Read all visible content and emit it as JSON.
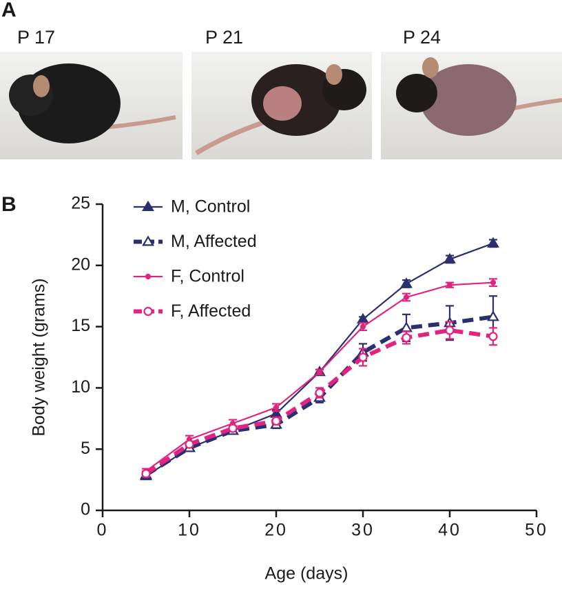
{
  "panel_a": {
    "label": "A",
    "photos": [
      {
        "label": "P 17"
      },
      {
        "label": "P 21"
      },
      {
        "label": "P 24"
      }
    ]
  },
  "chart_data": {
    "type": "line",
    "panel_label": "B",
    "x_label": "Age (days)",
    "y_label": "Body weight (grams)",
    "x": [
      5,
      10,
      15,
      20,
      25,
      30,
      35,
      40,
      45
    ],
    "series": [
      {
        "name": "M, Control",
        "color": "#2b2e6f",
        "dashed": false,
        "marker": "triangle",
        "marker_filled": true,
        "values": [
          2.8,
          5.1,
          6.5,
          7.9,
          11.3,
          15.6,
          18.5,
          20.5,
          21.8
        ],
        "errors": [
          0.2,
          0.2,
          0.2,
          0.3,
          0.2,
          0.2,
          0.3,
          0.3,
          0.3
        ]
      },
      {
        "name": "M, Affected",
        "color": "#2b2e6f",
        "dashed": true,
        "marker": "triangle",
        "marker_filled": false,
        "values": [
          2.9,
          5.1,
          6.5,
          7.0,
          9.2,
          12.9,
          14.9,
          15.3,
          15.8
        ],
        "errors": [
          0.2,
          0.2,
          0.2,
          0.3,
          0.4,
          0.7,
          1.1,
          1.4,
          1.7
        ]
      },
      {
        "name": "F, Control",
        "color": "#e2237f",
        "dashed": false,
        "marker": "dot",
        "marker_filled": true,
        "values": [
          3.2,
          5.8,
          7.1,
          8.4,
          11.3,
          15.0,
          17.4,
          18.4,
          18.6
        ],
        "errors": [
          0.2,
          0.3,
          0.3,
          0.3,
          0.2,
          0.3,
          0.3,
          0.2,
          0.3
        ]
      },
      {
        "name": "F, Affected",
        "color": "#e2237f",
        "dashed": true,
        "marker": "circle",
        "marker_filled": false,
        "values": [
          3.0,
          5.4,
          6.7,
          7.3,
          9.6,
          12.5,
          14.1,
          14.7,
          14.2
        ],
        "errors": [
          0.2,
          0.2,
          0.2,
          0.3,
          0.4,
          0.7,
          0.5,
          0.7,
          0.7
        ]
      }
    ],
    "xlim": [
      0,
      50
    ],
    "xticks": [
      0,
      10,
      20,
      30,
      40,
      50
    ],
    "ylim": [
      0,
      25
    ],
    "yticks": [
      0,
      5,
      10,
      15,
      20,
      25
    ],
    "grid": false,
    "legend": "upper left"
  }
}
